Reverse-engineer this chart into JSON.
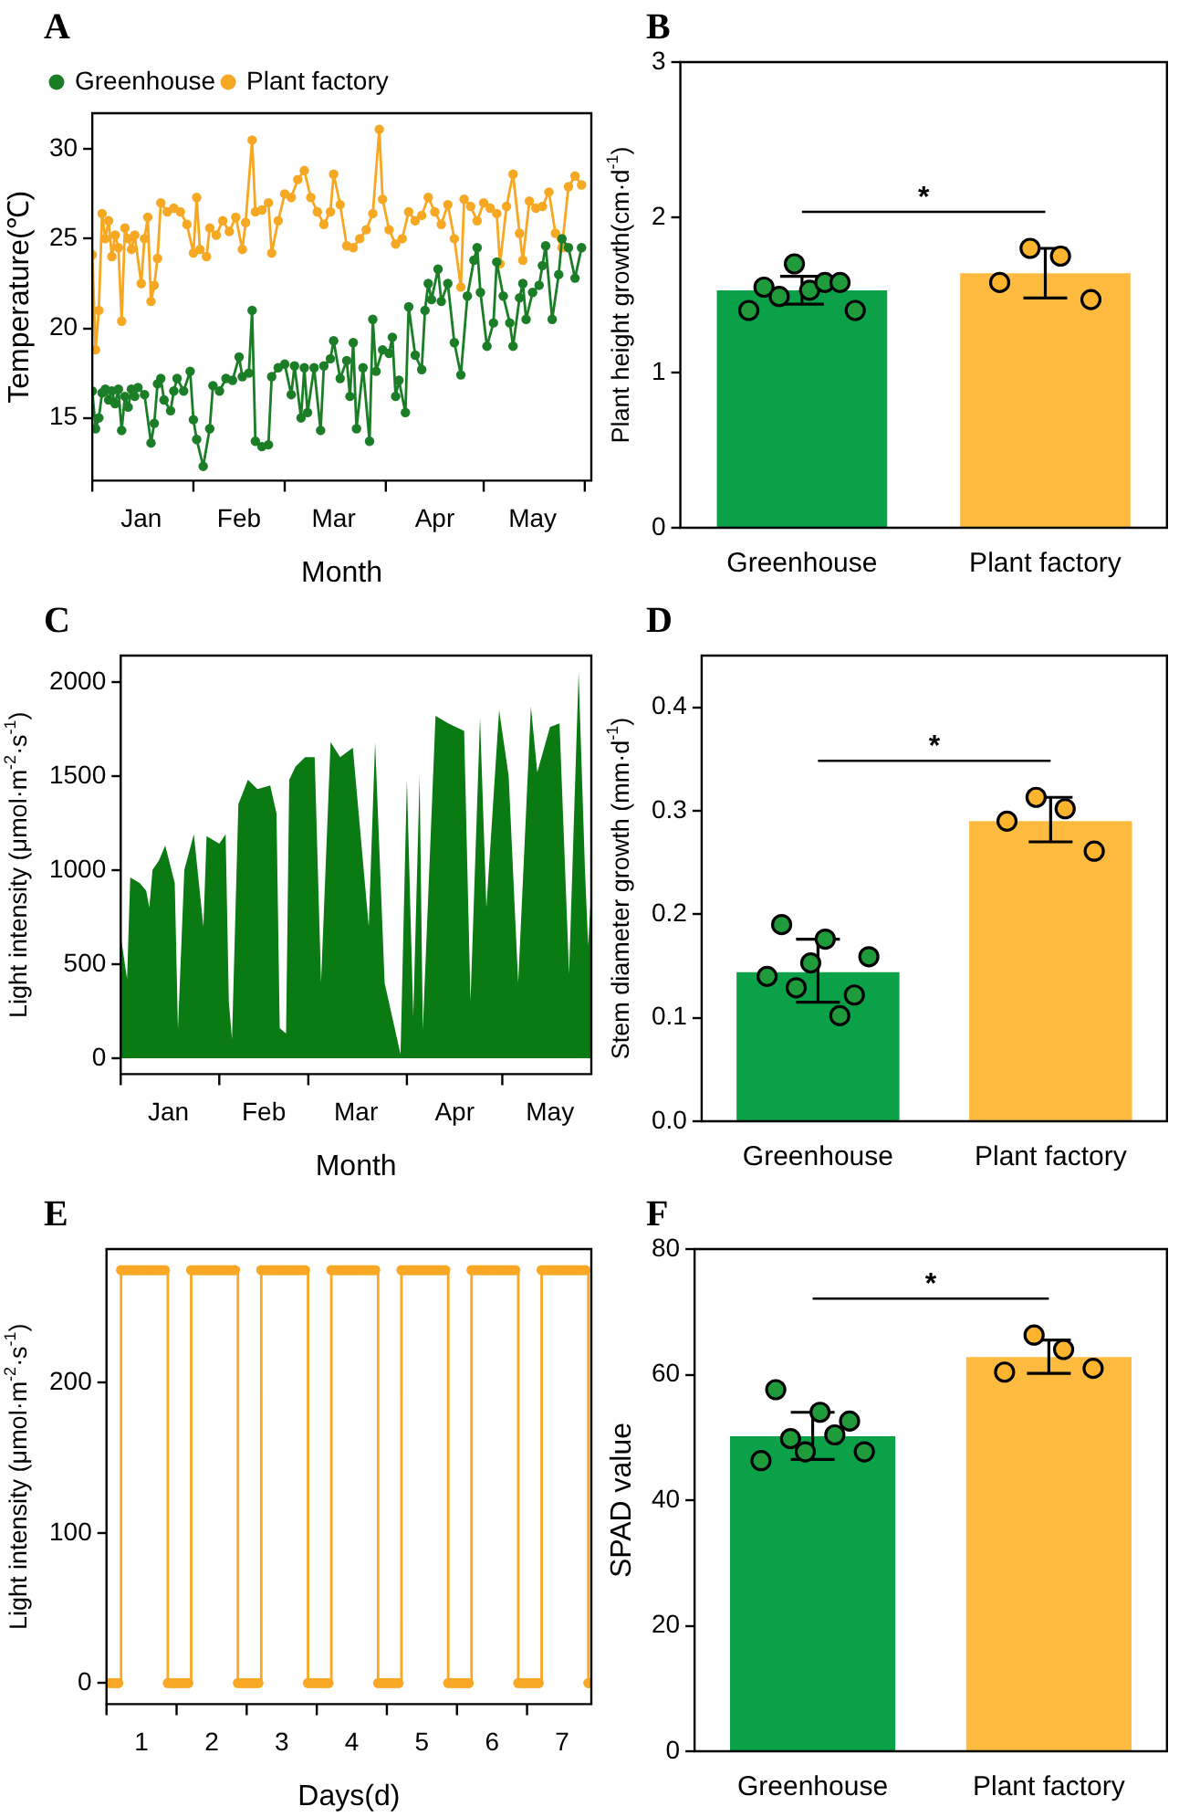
{
  "chart_data": [
    {
      "type": "line",
      "title": "A",
      "xlabel": "Month",
      "ylabel": "Temperature(℃)",
      "xlim": [
        "--01-01",
        "--06-03"
      ],
      "ylim": [
        11.5,
        32
      ],
      "yticks": [
        15,
        20,
        25,
        30
      ],
      "xticks": [
        {
          "value": "--01-01",
          "label": null
        },
        {
          "value": "--01-16",
          "label": "Jan"
        },
        {
          "value": "--02-01",
          "label": null
        },
        {
          "value": "--02-15",
          "label": "Feb"
        },
        {
          "value": "--03-01",
          "label": null
        },
        {
          "value": "--03-16",
          "label": "Mar"
        },
        {
          "value": "--04-01",
          "label": null
        },
        {
          "value": "--04-16",
          "label": "Apr"
        },
        {
          "value": "--05-01",
          "label": null
        },
        {
          "value": "--05-16",
          "label": "May"
        },
        {
          "value": "--06-01",
          "label": null
        }
      ],
      "legend": "top left",
      "marker": "circle",
      "line_style": "solid",
      "series": [
        {
          "name": "Greenhouse",
          "color": "#1b7e27",
          "x": [
            "--01-01",
            "--01-02",
            "--01-03",
            "--01-04",
            "--01-05",
            "--01-06",
            "--01-07",
            "--01-08",
            "--01-09",
            "--01-10",
            "--01-11",
            "--01-12",
            "--01-13",
            "--01-14",
            "--01-15",
            "--01-17",
            "--01-19",
            "--01-20",
            "--01-21",
            "--01-22",
            "--01-23",
            "--01-25",
            "--01-26",
            "--01-27",
            "--01-29",
            "--01-31",
            "--02-01",
            "--02-02",
            "--02-04",
            "--02-06",
            "--02-07",
            "--02-09",
            "--02-11",
            "--02-13",
            "--02-15",
            "--02-16",
            "--02-18",
            "--02-19",
            "--02-20",
            "--02-22",
            "--02-24",
            "--02-25",
            "--02-27",
            "--03-01",
            "--03-03",
            "--03-04",
            "--03-06",
            "--03-07",
            "--03-08",
            "--03-10",
            "--03-12",
            "--03-13",
            "--03-15",
            "--03-16",
            "--03-18",
            "--03-20",
            "--03-21",
            "--03-22",
            "--03-23",
            "--03-25",
            "--03-27",
            "--03-28",
            "--03-29",
            "--03-31",
            "--04-02",
            "--04-03",
            "--04-04",
            "--04-05",
            "--04-07",
            "--04-08",
            "--04-10",
            "--04-12",
            "--04-13",
            "--04-14",
            "--04-15",
            "--04-17",
            "--04-18",
            "--04-20",
            "--04-22",
            "--04-24",
            "--04-26",
            "--04-28",
            "--04-29",
            "--04-30",
            "--05-02",
            "--05-04",
            "--05-05",
            "--05-07",
            "--05-09",
            "--05-10",
            "--05-12",
            "--05-13",
            "--05-14",
            "--05-16",
            "--05-18",
            "--05-19",
            "--05-20",
            "--05-22",
            "--05-24",
            "--05-25",
            "--05-27",
            "--05-29",
            "--05-31"
          ],
          "values": [
            16.5,
            14.4,
            15,
            16.4,
            16.6,
            16,
            16.5,
            15.8,
            16.6,
            14.3,
            16.2,
            15.6,
            16.6,
            16.2,
            16.7,
            16.3,
            13.6,
            14.7,
            16.9,
            17.2,
            16,
            15.4,
            16.5,
            17.2,
            16.5,
            17.6,
            14.9,
            13.8,
            12.3,
            14.4,
            16.8,
            16.5,
            17.2,
            17.1,
            18.4,
            17.3,
            17.5,
            21,
            13.7,
            13.4,
            13.5,
            17.3,
            17.8,
            18,
            16.3,
            17.9,
            15,
            17.8,
            15.3,
            17.8,
            14.3,
            17.9,
            18.3,
            19.3,
            17.2,
            18.2,
            16.2,
            19.2,
            14.4,
            17.8,
            13.7,
            20.5,
            17.6,
            18.8,
            18.6,
            19.5,
            16.2,
            17.1,
            15.3,
            21.2,
            18.5,
            17.7,
            21,
            22.5,
            21.6,
            23.3,
            21.5,
            22.5,
            19.2,
            17.4,
            21.8,
            23.8,
            24.5,
            22,
            19,
            20.3,
            23.7,
            21.8,
            20.3,
            19,
            21.7,
            22.5,
            20.5,
            22,
            22.4,
            23.5,
            24.6,
            20.5,
            23,
            25,
            24.5,
            22.8,
            24.5
          ]
        },
        {
          "name": "Plant factory",
          "color": "#f7a823",
          "x": [
            "--01-01",
            "--01-02",
            "--01-03",
            "--01-04",
            "--01-05",
            "--01-06",
            "--01-07",
            "--01-08",
            "--01-09",
            "--01-10",
            "--01-11",
            "--01-12",
            "--01-13",
            "--01-14",
            "--01-16",
            "--01-17",
            "--01-18",
            "--01-19",
            "--01-20",
            "--01-21",
            "--01-22",
            "--01-24",
            "--01-26",
            "--01-28",
            "--01-30",
            "--02-01",
            "--02-02",
            "--02-03",
            "--02-05",
            "--02-06",
            "--02-08",
            "--02-10",
            "--02-12",
            "--02-14",
            "--02-16",
            "--02-17",
            "--02-19",
            "--02-20",
            "--02-22",
            "--02-24",
            "--02-25",
            "--02-27",
            "--03-01",
            "--03-03",
            "--03-05",
            "--03-07",
            "--03-09",
            "--03-11",
            "--03-13",
            "--03-15",
            "--03-16",
            "--03-18",
            "--03-20",
            "--03-22",
            "--03-24",
            "--03-26",
            "--03-28",
            "--03-30",
            "--03-31",
            "--04-02",
            "--04-04",
            "--04-06",
            "--04-08",
            "--04-10",
            "--04-12",
            "--04-14",
            "--04-16",
            "--04-18",
            "--04-20",
            "--04-22",
            "--04-24",
            "--04-25",
            "--04-27",
            "--04-29",
            "--05-01",
            "--05-03",
            "--05-05",
            "--05-06",
            "--05-08",
            "--05-10",
            "--05-12",
            "--05-13",
            "--05-15",
            "--05-17",
            "--05-19",
            "--05-21",
            "--05-23",
            "--05-25",
            "--05-27",
            "--05-29",
            "--05-31"
          ],
          "values": [
            24.1,
            18.8,
            21,
            26.4,
            25,
            26,
            24,
            25.2,
            24.5,
            20.4,
            25.6,
            25,
            24.4,
            25.2,
            22.5,
            25,
            26.2,
            21.5,
            22.4,
            23.9,
            27,
            26.5,
            26.7,
            26.5,
            25.8,
            24.2,
            27.3,
            24.4,
            24,
            25.6,
            25.2,
            26,
            25.4,
            26.2,
            24.4,
            25.9,
            30.5,
            26.5,
            26.6,
            27,
            24.2,
            26,
            27.5,
            27.3,
            28.3,
            28.8,
            27.3,
            26.5,
            25.8,
            26.5,
            28.6,
            26.9,
            24.6,
            24.5,
            25,
            25.5,
            26.4,
            31.1,
            27.2,
            25.5,
            24.7,
            25,
            26.5,
            26,
            26.3,
            27.3,
            26.5,
            25.8,
            26.9,
            25,
            22.3,
            27.2,
            26.8,
            26,
            27,
            26.7,
            26.4,
            23.6,
            26.8,
            28.6,
            25.3,
            23.8,
            27.1,
            26.7,
            26.8,
            27.6,
            25.3,
            24.5,
            27.9,
            28.5,
            28
          ]
        }
      ]
    },
    {
      "type": "bar",
      "title": "B",
      "ylabel": "Plant height growth(cm·d$^{-1}$)",
      "categories": [
        "Greenhouse",
        "Plant factory"
      ],
      "ylim": [
        0,
        3
      ],
      "yticks": [
        0,
        1,
        2,
        3
      ],
      "annotations": [
        "*"
      ],
      "series": [
        {
          "colors": [
            "#0aa148",
            "#ffbb3f"
          ],
          "values": [
            1.53,
            1.64
          ],
          "errors": [
            [
              1.44,
              1.62
            ],
            [
              1.48,
              1.8
            ]
          ]
        },
        {
          "type": "scatter",
          "x": [
            "Greenhouse",
            "Greenhouse",
            "Greenhouse",
            "Greenhouse",
            "Greenhouse",
            "Greenhouse",
            "Greenhouse",
            "Greenhouse",
            "Plant factory",
            "Plant factory",
            "Plant factory",
            "Plant factory"
          ],
          "values": [
            1.4,
            1.55,
            1.49,
            1.7,
            1.53,
            1.58,
            1.58,
            1.4,
            1.58,
            1.8,
            1.75,
            1.47
          ],
          "colors": [
            "#1f9b3c",
            "#1f9b3c",
            "#1f9b3c",
            "#1f9b3c",
            "#1f9b3c",
            "#1f9b3c",
            "#1f9b3c",
            "#1f9b3c",
            "#ffb42e",
            "#ffb42e",
            "#ffb42e",
            "#ffb42e"
          ]
        }
      ]
    },
    {
      "type": "area",
      "title": "C",
      "xlabel": "Month",
      "ylabel": "Light intensity (μmol·m$^{-2}$·s$^{-1}$)",
      "xlim": [
        "--01-01",
        "--05-29"
      ],
      "ylim": [
        -85,
        2140
      ],
      "yticks": [
        0,
        500,
        1000,
        1500,
        2000
      ],
      "xticks": [
        {
          "value": "--01-01",
          "label": null
        },
        {
          "value": "--01-16",
          "label": "Jan"
        },
        {
          "value": "--02-01",
          "label": null
        },
        {
          "value": "--02-15",
          "label": "Feb"
        },
        {
          "value": "--03-01",
          "label": null
        },
        {
          "value": "--03-16",
          "label": "Mar"
        },
        {
          "value": "--04-01",
          "label": null
        },
        {
          "value": "--04-16",
          "label": "Apr"
        },
        {
          "value": "--05-01",
          "label": null
        },
        {
          "value": "--05-16",
          "label": "May"
        }
      ],
      "series": [
        {
          "color": "#0a7a12",
          "x": [
            "--01-01",
            "--01-03",
            "--01-04",
            "--01-07",
            "--01-09",
            "--01-10",
            "--01-11",
            "--01-13",
            "--01-15",
            "--01-18",
            "--01-19",
            "--01-21",
            "--01-24",
            "--01-27",
            "--01-28",
            "--02-01",
            "--02-03",
            "--02-04",
            "--02-05",
            "--02-07",
            "--02-10",
            "--02-13",
            "--02-17",
            "--02-19",
            "--02-20",
            "--02-22",
            "--02-23",
            "--02-25",
            "--02-28",
            "--03-03",
            "--03-05",
            "--03-08",
            "--03-11",
            "--03-15",
            "--03-20",
            "--03-22",
            "--03-25",
            "--03-30",
            "--04-01",
            "--04-03",
            "--04-05",
            "--04-06",
            "--04-10",
            "--04-14",
            "--04-19",
            "--04-21",
            "--04-24",
            "--04-26",
            "--04-30",
            "--05-03",
            "--05-06",
            "--05-10",
            "--05-12",
            "--05-16",
            "--05-19",
            "--05-22",
            "--05-25",
            "--05-27",
            "--05-28",
            "--05-29"
          ],
          "values": [
            650,
            420,
            960,
            930,
            890,
            800,
            1000,
            1050,
            1130,
            930,
            150,
            1000,
            1190,
            700,
            1180,
            1140,
            1190,
            300,
            100,
            1350,
            1480,
            1430,
            1450,
            1300,
            160,
            130,
            1480,
            1550,
            1600,
            1600,
            400,
            1680,
            1600,
            1650,
            700,
            1680,
            400,
            20,
            1480,
            220,
            1500,
            150,
            1820,
            1780,
            1740,
            300,
            1810,
            800,
            1850,
            1500,
            400,
            1870,
            1520,
            1760,
            1780,
            450,
            2050,
            1000,
            600,
            900
          ]
        }
      ]
    },
    {
      "type": "bar",
      "title": "D",
      "ylabel": "Stem diameter growth (mm·d$^{-1}$)",
      "categories": [
        "Greenhouse",
        "Plant factory"
      ],
      "ylim": [
        0,
        0.45
      ],
      "yticks": [
        {
          "value": 0,
          "label": "0.0"
        },
        0.1,
        0.2,
        0.3,
        0.4
      ],
      "annotations": [
        "*"
      ],
      "series": [
        {
          "colors": [
            "#0aa148",
            "#ffbb3f"
          ],
          "values": [
            0.144,
            0.29
          ],
          "errors": [
            [
              0.115,
              0.176
            ],
            [
              0.27,
              0.313
            ]
          ]
        },
        {
          "type": "scatter",
          "x": [
            "Greenhouse",
            "Greenhouse",
            "Greenhouse",
            "Greenhouse",
            "Greenhouse",
            "Greenhouse",
            "Greenhouse",
            "Greenhouse",
            "Plant factory",
            "Plant factory",
            "Plant factory",
            "Plant factory"
          ],
          "values": [
            0.14,
            0.19,
            0.129,
            0.153,
            0.176,
            0.102,
            0.122,
            0.159,
            0.29,
            0.313,
            0.302,
            0.261
          ],
          "colors": [
            "#1f9b3c",
            "#1f9b3c",
            "#1f9b3c",
            "#1f9b3c",
            "#1f9b3c",
            "#1f9b3c",
            "#1f9b3c",
            "#1f9b3c",
            "#ffb42e",
            "#ffb42e",
            "#ffb42e",
            "#ffb42e"
          ]
        }
      ]
    },
    {
      "type": "step",
      "title": "E",
      "xlabel": "Days(d)",
      "ylabel": "Light intensity (μmol·m$^{-2}$·s$^{-1}$)",
      "xlim": [
        0.5,
        7.417
      ],
      "ylim": [
        -14,
        289
      ],
      "yticks": [
        0,
        100,
        200
      ],
      "marker": "circle",
      "xticks": [
        {
          "value": 0.5,
          "label": null
        },
        1,
        {
          "value": 1.5,
          "label": null
        },
        2,
        {
          "value": 2.5,
          "label": null
        },
        3,
        {
          "value": 3.5,
          "label": null
        },
        4,
        {
          "value": 4.5,
          "label": null
        },
        5,
        {
          "value": 5.5,
          "label": null
        },
        6,
        {
          "value": 6.5,
          "label": null
        },
        7
      ],
      "series": [
        {
          "color": "#f9a825",
          "x": [
            0.5,
            0.542,
            0.583,
            0.625,
            0.667,
            0.708,
            0.75,
            0.792,
            0.833,
            0.875,
            0.917,
            0.958,
            1,
            1.042,
            1.083,
            1.125,
            1.167,
            1.208,
            1.25,
            1.292,
            1.333,
            1.375,
            1.417,
            1.458,
            1.5,
            1.542,
            1.583,
            1.625,
            1.667,
            1.708,
            1.75,
            1.792,
            1.833,
            1.875,
            1.917,
            1.958,
            2,
            2.042,
            2.083,
            2.125,
            2.167,
            2.208,
            2.25,
            2.292,
            2.333,
            2.375,
            2.417,
            2.458,
            2.5,
            2.542,
            2.583,
            2.625,
            2.667,
            2.708,
            2.75,
            2.792,
            2.833,
            2.875,
            2.917,
            2.958,
            3,
            3.042,
            3.083,
            3.125,
            3.167,
            3.208,
            3.25,
            3.292,
            3.333,
            3.375,
            3.417,
            3.458,
            3.5,
            3.542,
            3.583,
            3.625,
            3.667,
            3.708,
            3.75,
            3.792,
            3.833,
            3.875,
            3.917,
            3.958,
            4,
            4.042,
            4.083,
            4.125,
            4.167,
            4.208,
            4.25,
            4.292,
            4.333,
            4.375,
            4.417,
            4.458,
            4.5,
            4.542,
            4.583,
            4.625,
            4.667,
            4.708,
            4.75,
            4.792,
            4.833,
            4.875,
            4.917,
            4.958,
            5,
            5.042,
            5.083,
            5.125,
            5.167,
            5.208,
            5.25,
            5.292,
            5.333,
            5.375,
            5.417,
            5.458,
            5.5,
            5.542,
            5.583,
            5.625,
            5.667,
            5.708,
            5.75,
            5.792,
            5.833,
            5.875,
            5.917,
            5.958,
            6,
            6.042,
            6.083,
            6.125,
            6.167,
            6.208,
            6.25,
            6.292,
            6.333,
            6.375,
            6.417,
            6.458,
            6.5,
            6.542,
            6.583,
            6.625,
            6.667,
            6.708,
            6.75,
            6.792,
            6.833,
            6.875,
            6.917,
            6.958,
            7,
            7.042,
            7.083,
            7.125,
            7.167,
            7.208,
            7.25,
            7.292,
            7.333,
            7.375,
            7.417
          ],
          "values": [
            0,
            0,
            0,
            0,
            0,
            275,
            275,
            275,
            275,
            275,
            275,
            275,
            275,
            275,
            275,
            275,
            275,
            275,
            275,
            275,
            275,
            0,
            0,
            0,
            0,
            0,
            0,
            0,
            0,
            275,
            275,
            275,
            275,
            275,
            275,
            275,
            275,
            275,
            275,
            275,
            275,
            275,
            275,
            275,
            275,
            0,
            0,
            0,
            0,
            0,
            0,
            0,
            0,
            275,
            275,
            275,
            275,
            275,
            275,
            275,
            275,
            275,
            275,
            275,
            275,
            275,
            275,
            275,
            275,
            0,
            0,
            0,
            0,
            0,
            0,
            0,
            0,
            275,
            275,
            275,
            275,
            275,
            275,
            275,
            275,
            275,
            275,
            275,
            275,
            275,
            275,
            275,
            275,
            0,
            0,
            0,
            0,
            0,
            0,
            0,
            0,
            275,
            275,
            275,
            275,
            275,
            275,
            275,
            275,
            275,
            275,
            275,
            275,
            275,
            275,
            275,
            275,
            0,
            0,
            0,
            0,
            0,
            0,
            0,
            0,
            275,
            275,
            275,
            275,
            275,
            275,
            275,
            275,
            275,
            275,
            275,
            275,
            275,
            275,
            275,
            275,
            0,
            0,
            0,
            0,
            0,
            0,
            0,
            0,
            275,
            275,
            275,
            275,
            275,
            275,
            275,
            275,
            275,
            275,
            275,
            275,
            275,
            275,
            275,
            275,
            0,
            0
          ]
        }
      ]
    },
    {
      "type": "bar",
      "title": "F",
      "ylabel": "SPAD value",
      "categories": [
        "Greenhouse",
        "Plant factory"
      ],
      "ylim": [
        0,
        80
      ],
      "yticks": [
        0,
        20,
        40,
        60,
        80
      ],
      "annotations": [
        "*"
      ],
      "series": [
        {
          "colors": [
            "#0aa148",
            "#ffbb3f"
          ],
          "values": [
            50.2,
            62.8
          ],
          "errors": [
            [
              46.5,
              54
            ],
            [
              60.2,
              65.5
            ]
          ]
        },
        {
          "type": "scatter",
          "x": [
            "Greenhouse",
            "Greenhouse",
            "Greenhouse",
            "Greenhouse",
            "Greenhouse",
            "Greenhouse",
            "Greenhouse",
            "Greenhouse",
            "Plant factory",
            "Plant factory",
            "Plant factory",
            "Plant factory"
          ],
          "values": [
            46.3,
            57.6,
            49.8,
            47.7,
            54,
            50.4,
            52.6,
            47.7,
            60.4,
            66.3,
            64,
            61
          ],
          "colors": [
            "#1f9b3c",
            "#1f9b3c",
            "#1f9b3c",
            "#1f9b3c",
            "#1f9b3c",
            "#1f9b3c",
            "#1f9b3c",
            "#1f9b3c",
            "#ffb42e",
            "#ffb42e",
            "#ffb42e",
            "#ffb42e"
          ]
        }
      ]
    }
  ]
}
